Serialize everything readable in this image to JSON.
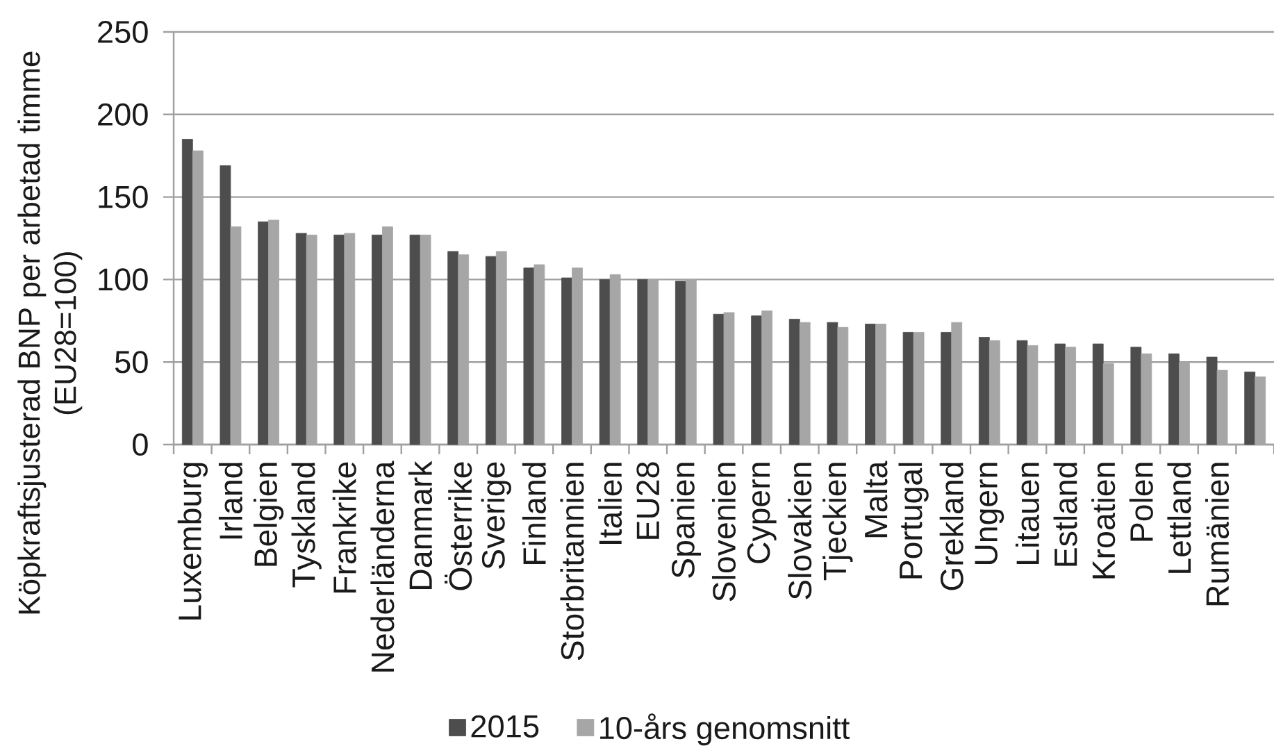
{
  "chart_data": {
    "type": "bar",
    "ylabel": "Köpkraftsjusterad BNP per arbetad timme (EU28=100)",
    "categories": [
      "Luxemburg",
      "Irland",
      "Belgien",
      "Tyskland",
      "Frankrike",
      "Nederländerna",
      "Danmark",
      "Österrike",
      "Sverige",
      "Finland",
      "Storbritannien",
      "Italien",
      "EU28",
      "Spanien",
      "Slovenien",
      "Cypern",
      "Slovakien",
      "Tjeckien",
      "Malta",
      "Portugal",
      "Grekland",
      "Ungern",
      "Litauen",
      "Estland",
      "Kroatien",
      "Polen",
      "Lettland",
      "Rumänien",
      null
    ],
    "series": [
      {
        "name": "2015",
        "color": "#4d4d4d",
        "values": [
          185,
          169,
          135,
          128,
          127,
          127,
          127,
          117,
          114,
          107,
          101,
          100,
          100,
          99,
          79,
          78,
          76,
          74,
          73,
          68,
          68,
          65,
          63,
          61,
          61,
          59,
          55,
          53,
          44
        ]
      },
      {
        "name": "10-års genomsnitt",
        "color": "#a6a6a6",
        "values": [
          178,
          132,
          136,
          127,
          128,
          132,
          127,
          115,
          117,
          109,
          107,
          103,
          100,
          100,
          80,
          81,
          74,
          71,
          73,
          68,
          74,
          63,
          60,
          59,
          49,
          55,
          50,
          45,
          41
        ]
      }
    ],
    "ylim": [
      0,
      250
    ],
    "yticks": [
      0,
      50,
      100,
      150,
      200,
      250
    ],
    "grid": "y",
    "legend": "bottom"
  }
}
